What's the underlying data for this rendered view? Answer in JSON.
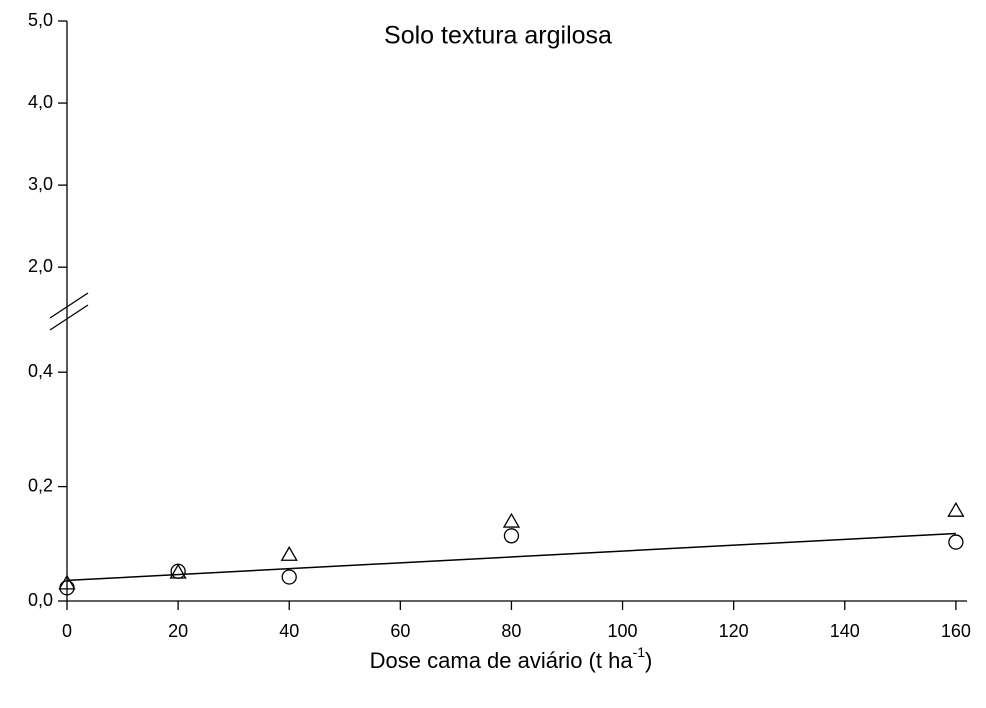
{
  "chart_data": {
    "type": "scatter",
    "title": "Solo  textura argilosa",
    "x_label": {
      "text": "Dose cama de aviário (t ha",
      "superscript": "-1",
      "suffix": ")"
    },
    "xlim": [
      0,
      162
    ],
    "xticks": [
      0,
      20,
      40,
      60,
      80,
      100,
      120,
      140,
      160
    ],
    "ylim": [
      0,
      5
    ],
    "ybreak": [
      0.5,
      1.6
    ],
    "yticks": [
      {
        "value": 0,
        "label": "0,0"
      },
      {
        "value": 0.2,
        "label": "0,2"
      },
      {
        "value": 0.4,
        "label": "0,4"
      },
      {
        "value": 2,
        "label": "2,0"
      },
      {
        "value": 3,
        "label": "3,0"
      },
      {
        "value": 4,
        "label": "4,0"
      },
      {
        "value": 5,
        "label": "5,0"
      }
    ],
    "series": [
      {
        "marker": "circle",
        "color": "#000000",
        "x": [
          0,
          20,
          40,
          80,
          160
        ],
        "values": [
          0.023,
          0.052,
          0.042,
          0.114,
          0.103
        ]
      },
      {
        "marker": "triangle",
        "color": "#000000",
        "x": [
          0,
          20,
          40,
          80,
          160
        ],
        "values": [
          0.03,
          0.049,
          0.08,
          0.138,
          0.157
        ]
      }
    ],
    "fit": {
      "color": "#000000",
      "x": [
        0,
        160
      ],
      "values": [
        0.036,
        0.118
      ]
    }
  }
}
